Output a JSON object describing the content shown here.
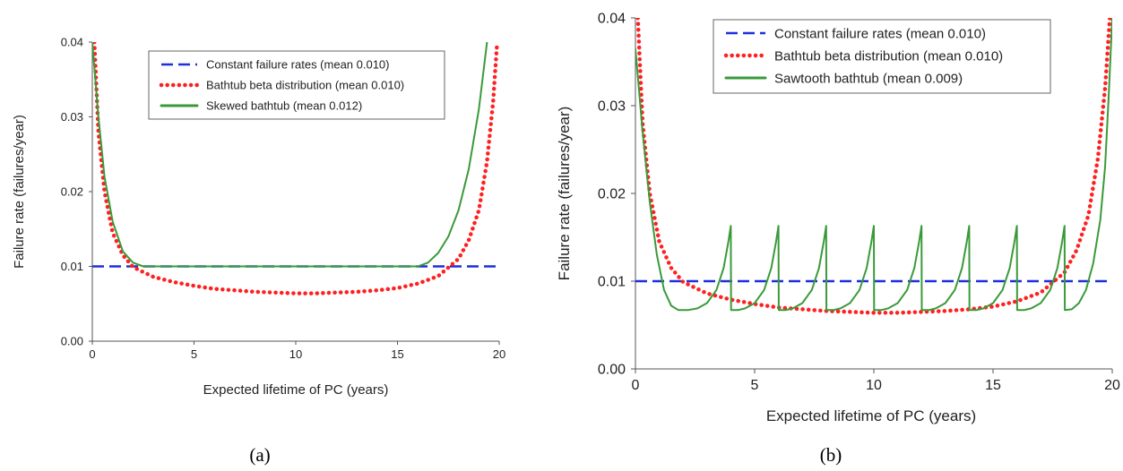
{
  "chart_data": [
    {
      "type": "line",
      "caption": "(a)",
      "xlabel": "Expected lifetime of PC (years)",
      "ylabel": "Failure rate (failures/year)",
      "xlim": [
        0,
        20
      ],
      "ylim": [
        0,
        0.04
      ],
      "x_ticks": [
        "0",
        "5",
        "10",
        "15",
        "20"
      ],
      "y_ticks": [
        "0.00",
        "0.01",
        "0.02",
        "0.03",
        "0.04"
      ],
      "grid": false,
      "legend_position": "top-center",
      "series": [
        {
          "name": "Constant failure rates (mean 0.010)",
          "color": "#1f2fdc",
          "style": "dashed",
          "x": [
            0,
            20
          ],
          "y": [
            0.01,
            0.01
          ]
        },
        {
          "name": "Bathtub beta distribution (mean 0.010)",
          "color": "#ff2020",
          "style": "dotted",
          "x": [
            0.1,
            0.3,
            0.6,
            1,
            1.5,
            2,
            3,
            4,
            5,
            6,
            7,
            8,
            9,
            10,
            11,
            12,
            13,
            14,
            15,
            16,
            17,
            18,
            18.5,
            19,
            19.4,
            19.7,
            19.9
          ],
          "y": [
            0.04,
            0.028,
            0.02,
            0.0145,
            0.0115,
            0.0099,
            0.0086,
            0.0079,
            0.0074,
            0.007,
            0.0068,
            0.0066,
            0.0065,
            0.0064,
            0.0064,
            0.0065,
            0.0066,
            0.0068,
            0.0071,
            0.0077,
            0.0087,
            0.011,
            0.0135,
            0.0175,
            0.024,
            0.032,
            0.04
          ]
        },
        {
          "name": "Skewed bathtub (mean 0.012)",
          "color": "#3a9a3a",
          "style": "solid",
          "x": [
            0,
            0.3,
            0.6,
            1,
            1.5,
            2,
            2.5,
            5,
            10,
            15,
            16,
            16.5,
            17,
            17.5,
            18,
            18.5,
            19,
            19.4
          ],
          "y": [
            0.04,
            0.03,
            0.022,
            0.016,
            0.012,
            0.0105,
            0.01,
            0.01,
            0.01,
            0.01,
            0.01,
            0.0105,
            0.0118,
            0.014,
            0.0175,
            0.023,
            0.031,
            0.04
          ]
        }
      ]
    },
    {
      "type": "line",
      "caption": "(b)",
      "xlabel": "Expected lifetime of PC (years)",
      "ylabel": "Failure rate (failures/year)",
      "xlim": [
        0,
        20
      ],
      "ylim": [
        0,
        0.04
      ],
      "x_ticks": [
        "0",
        "5",
        "10",
        "15",
        "20"
      ],
      "y_ticks": [
        "0.00",
        "0.01",
        "0.02",
        "0.03",
        "0.04"
      ],
      "grid": false,
      "legend_position": "top-center",
      "series": [
        {
          "name": "Constant failure rates (mean 0.010)",
          "color": "#1f2fdc",
          "style": "dashed",
          "x": [
            0,
            20
          ],
          "y": [
            0.01,
            0.01
          ]
        },
        {
          "name": "Bathtub beta distribution (mean 0.010)",
          "color": "#ff2020",
          "style": "dotted",
          "x": [
            0.1,
            0.3,
            0.6,
            1,
            1.5,
            2,
            3,
            4,
            5,
            6,
            7,
            8,
            9,
            10,
            11,
            12,
            13,
            14,
            15,
            16,
            17,
            18,
            18.5,
            19,
            19.4,
            19.7,
            19.9
          ],
          "y": [
            0.04,
            0.028,
            0.02,
            0.0145,
            0.0115,
            0.0099,
            0.0086,
            0.0079,
            0.0074,
            0.007,
            0.0068,
            0.0066,
            0.0065,
            0.0064,
            0.0064,
            0.0065,
            0.0066,
            0.0068,
            0.0071,
            0.0077,
            0.0087,
            0.011,
            0.0135,
            0.0175,
            0.024,
            0.032,
            0.04
          ]
        },
        {
          "name": "Sawtooth bathtub (mean 0.009)",
          "color": "#3a9a3a",
          "style": "solid",
          "x": [
            0,
            0.3,
            0.6,
            0.9,
            1.2,
            1.5,
            1.8,
            2.2,
            2.6,
            3.0,
            3.4,
            3.7,
            3.9,
            4.0,
            4.01,
            4.3,
            4.6,
            5.0,
            5.4,
            5.7,
            5.9,
            6.0,
            6.01,
            6.3,
            6.6,
            7.0,
            7.4,
            7.7,
            7.9,
            8.0,
            8.01,
            8.3,
            8.6,
            9.0,
            9.4,
            9.7,
            9.9,
            10.0,
            10.01,
            10.3,
            10.6,
            11.0,
            11.4,
            11.7,
            11.9,
            12.0,
            12.01,
            12.3,
            12.6,
            13.0,
            13.4,
            13.7,
            13.9,
            14.0,
            14.01,
            14.3,
            14.6,
            15.0,
            15.4,
            15.7,
            15.9,
            16.0,
            16.01,
            16.3,
            16.6,
            17.0,
            17.4,
            17.7,
            17.9,
            18.0,
            18.01,
            18.3,
            18.6,
            18.9,
            19.2,
            19.5,
            19.7,
            19.85,
            20.0
          ],
          "y": [
            0.0365,
            0.027,
            0.019,
            0.013,
            0.009,
            0.0072,
            0.0067,
            0.0067,
            0.0069,
            0.0075,
            0.009,
            0.0115,
            0.0145,
            0.0163,
            0.0067,
            0.0067,
            0.0069,
            0.0075,
            0.009,
            0.0115,
            0.0145,
            0.0163,
            0.0067,
            0.0067,
            0.0069,
            0.0075,
            0.009,
            0.0115,
            0.0145,
            0.0163,
            0.0067,
            0.0067,
            0.0069,
            0.0075,
            0.009,
            0.0115,
            0.0145,
            0.0163,
            0.0067,
            0.0067,
            0.0069,
            0.0075,
            0.009,
            0.0115,
            0.0145,
            0.0163,
            0.0067,
            0.0067,
            0.0069,
            0.0075,
            0.009,
            0.0115,
            0.0145,
            0.0163,
            0.0067,
            0.0067,
            0.0069,
            0.0075,
            0.009,
            0.0115,
            0.0145,
            0.0163,
            0.0067,
            0.0067,
            0.0069,
            0.0075,
            0.009,
            0.0115,
            0.0145,
            0.0163,
            0.0067,
            0.0068,
            0.0075,
            0.009,
            0.012,
            0.017,
            0.023,
            0.031,
            0.04
          ]
        }
      ]
    }
  ]
}
